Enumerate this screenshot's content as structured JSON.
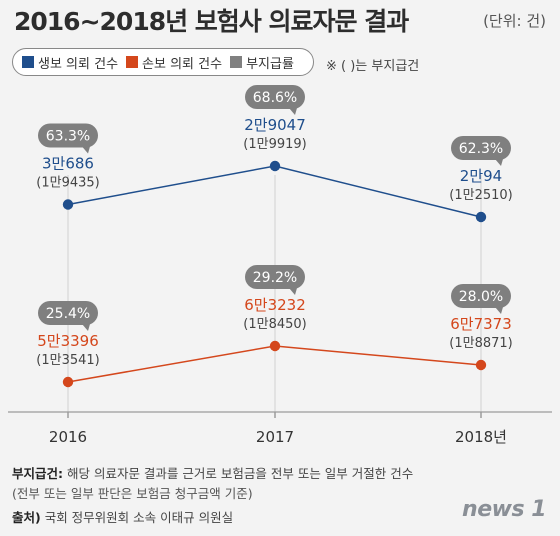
{
  "title": "2016~2018년 보험사 의료자문 결과",
  "unit": "(단위: 건)",
  "note": "※ (   )는 부지급건",
  "footer": {
    "label": "부지급건:",
    "text1": " 해당 의료자문 결과를 근거로 보험금을 전부 또는 일부 거절한 건수",
    "text2": "(전부 또는 일부 판단은 보험금 청구금액 기준)",
    "source_label": "출처)",
    "source_text": " 국회 정무위원회 소속 이태규 의원실"
  },
  "logo": "news 1",
  "chart_data": {
    "type": "line",
    "categories": [
      "2016",
      "2017",
      "2018년"
    ],
    "legend": [
      {
        "name": "생보 의뢰 건수",
        "color": "#1f4e8c"
      },
      {
        "name": "손보 의뢰 건수",
        "color": "#d4471c"
      },
      {
        "name": "부지급률",
        "color": "#808080"
      }
    ],
    "series": [
      {
        "name": "생보 의뢰 건수",
        "color": "#1f4e8c",
        "values": [
          30686,
          29047,
          20094
        ],
        "value_labels": [
          "3만686",
          "2만9047",
          "2만94"
        ],
        "denied": [
          19435,
          19919,
          12510
        ],
        "denied_labels": [
          "(1만9435)",
          "(1만9919)",
          "(1만2510)"
        ],
        "rate_labels": [
          "63.3%",
          "68.6%",
          "62.3%"
        ]
      },
      {
        "name": "손보 의뢰 건수",
        "color": "#d4471c",
        "values": [
          53396,
          63232,
          67373
        ],
        "value_labels": [
          "5만3396",
          "6만3232",
          "6만7373"
        ],
        "denied": [
          13541,
          18450,
          18871
        ],
        "denied_labels": [
          "(1만3541)",
          "(1만8450)",
          "(1만8871)"
        ],
        "rate_labels": [
          "25.4%",
          "29.2%",
          "28.0%"
        ]
      }
    ],
    "badge_color": "#7f7f7f"
  }
}
